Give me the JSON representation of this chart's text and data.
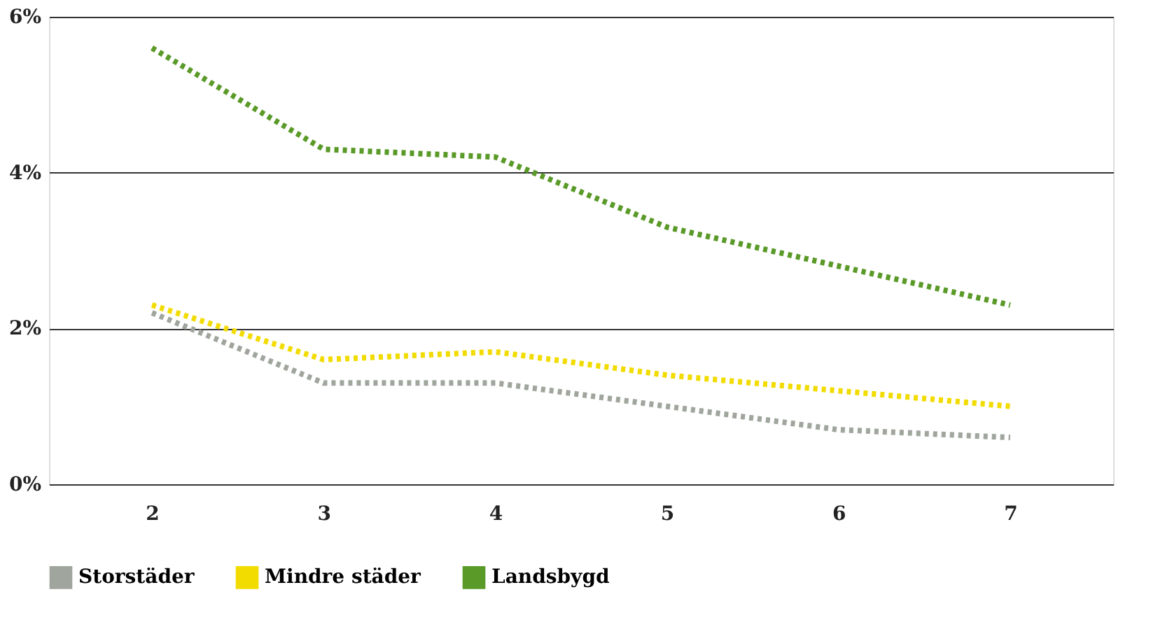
{
  "chart_data": {
    "type": "line",
    "categories": [
      "2",
      "3",
      "4",
      "5",
      "6",
      "7"
    ],
    "series": [
      {
        "name": "Storstäder",
        "color": "#a0a69e",
        "values": [
          2.2,
          1.3,
          1.3,
          1.0,
          0.7,
          0.6
        ]
      },
      {
        "name": "Mindre städer",
        "color": "#f2dc00",
        "values": [
          2.3,
          1.6,
          1.7,
          1.4,
          1.2,
          1.0
        ]
      },
      {
        "name": "Landsbygd",
        "color": "#5a9a28",
        "values": [
          5.6,
          4.3,
          4.2,
          3.3,
          2.8,
          2.3
        ]
      }
    ],
    "ylim": [
      0,
      6
    ],
    "yticks": [
      {
        "value": 0,
        "label": "0%"
      },
      {
        "value": 2,
        "label": "2%"
      },
      {
        "value": 4,
        "label": "4%"
      },
      {
        "value": 6,
        "label": "6%"
      }
    ],
    "grid": "y",
    "legend": "bottom left",
    "marker": "none",
    "line_style": "dotted"
  }
}
